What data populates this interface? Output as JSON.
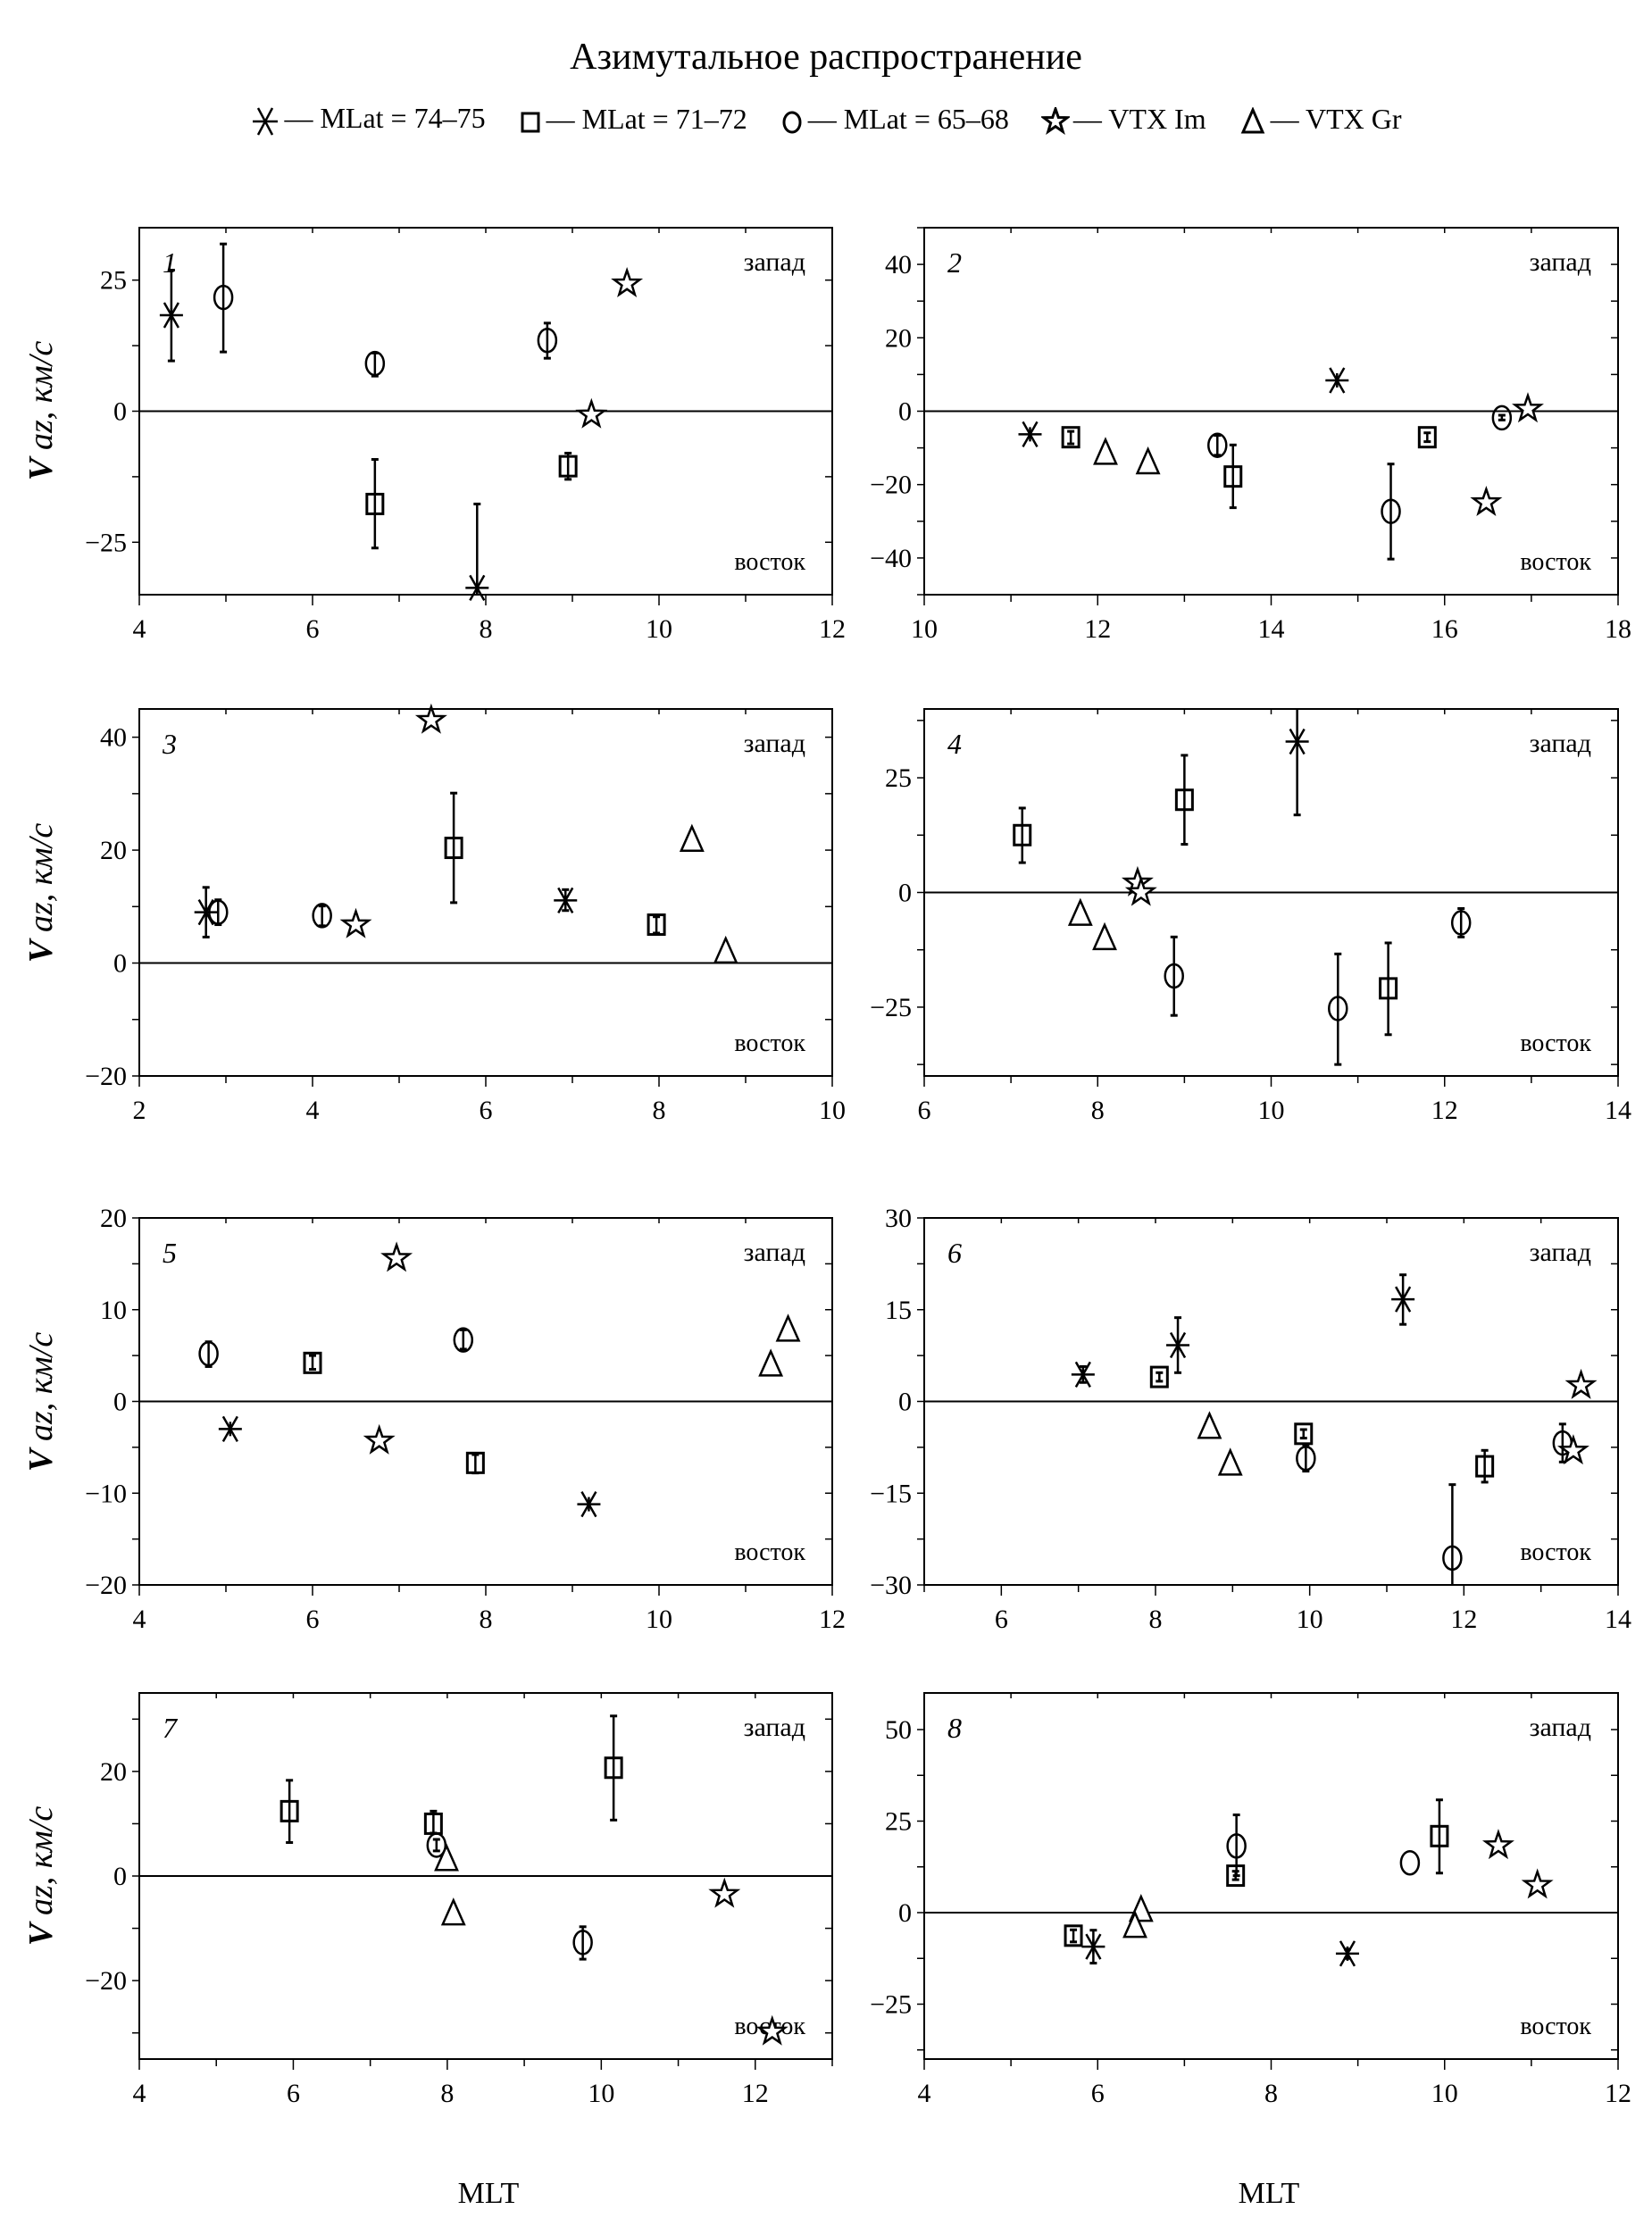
{
  "title": "Азимутальное распространение",
  "legend": [
    {
      "marker": "asterisk",
      "label": "— MLat = 74–75"
    },
    {
      "marker": "square",
      "label": "— MLat = 71–72"
    },
    {
      "marker": "circle",
      "label": "— MLat = 65–68"
    },
    {
      "marker": "star",
      "label": "— VTX Im"
    },
    {
      "marker": "triangle",
      "label": "— VTX Gr"
    }
  ],
  "xlabel": "MLT",
  "ylabel": "V az, км/с",
  "annotations": {
    "top": "запад",
    "bottom": "восток"
  },
  "chart_data": [
    {
      "type": "scatter",
      "panel": "1",
      "xlim": [
        4,
        12
      ],
      "ylim": [
        -35,
        35
      ],
      "xticks": [
        4,
        6,
        8,
        10,
        12
      ],
      "yticks": [
        -25,
        0,
        25
      ],
      "points": [
        {
          "series": "asterisk",
          "x": 4.37,
          "y": 18.3,
          "err": [
            9.6,
            26.9
          ]
        },
        {
          "series": "asterisk",
          "x": 7.9,
          "y": -33.7,
          "err": [
            -35,
            -17.7
          ]
        },
        {
          "series": "circle",
          "x": 4.97,
          "y": 21.7,
          "err": [
            11.3,
            31.9
          ]
        },
        {
          "series": "circle",
          "x": 6.72,
          "y": 9.1,
          "err": [
            6.7,
            11.1
          ]
        },
        {
          "series": "circle",
          "x": 8.71,
          "y": 13.5,
          "err": [
            10.1,
            16.8
          ]
        },
        {
          "series": "square",
          "x": 6.72,
          "y": -17.7,
          "err": [
            -26.1,
            -9.2
          ]
        },
        {
          "series": "square",
          "x": 8.95,
          "y": -10.5,
          "err": [
            -13.0,
            -8.0
          ]
        },
        {
          "series": "star",
          "x": 9.63,
          "y": 24.3
        },
        {
          "series": "star",
          "x": 9.22,
          "y": -0.7
        }
      ]
    },
    {
      "type": "scatter",
      "panel": "2",
      "xlim": [
        10,
        18
      ],
      "ylim": [
        -50,
        50
      ],
      "xticks": [
        10,
        12,
        14,
        16,
        18
      ],
      "yticks": [
        -40,
        -20,
        0,
        20,
        40
      ],
      "points": [
        {
          "series": "asterisk",
          "x": 11.22,
          "y": -6.3
        },
        {
          "series": "asterisk",
          "x": 14.76,
          "y": 8.4
        },
        {
          "series": "square",
          "x": 11.69,
          "y": -7.1,
          "err": [
            -8.9,
            -5.5
          ]
        },
        {
          "series": "square",
          "x": 13.56,
          "y": -17.8,
          "err": [
            -26.3,
            -9.2
          ]
        },
        {
          "series": "square",
          "x": 15.8,
          "y": -7.1,
          "err": [
            -8.3,
            -5.9
          ]
        },
        {
          "series": "circle",
          "x": 13.38,
          "y": -9.3,
          "err": [
            -12.0,
            -6.6
          ]
        },
        {
          "series": "circle",
          "x": 15.38,
          "y": -27.3,
          "err": [
            -40.3,
            -14.4
          ]
        },
        {
          "series": "circle",
          "x": 16.66,
          "y": -1.8,
          "err": [
            -2.4,
            -1.1
          ]
        },
        {
          "series": "triangle",
          "x": 12.09,
          "y": -11.4
        },
        {
          "series": "triangle",
          "x": 12.58,
          "y": -14.0
        },
        {
          "series": "star",
          "x": 16.48,
          "y": -24.9
        },
        {
          "series": "star",
          "x": 16.96,
          "y": 0.6
        }
      ]
    },
    {
      "type": "scatter",
      "panel": "3",
      "xlim": [
        2,
        10
      ],
      "ylim": [
        -20,
        45
      ],
      "xticks": [
        2,
        4,
        6,
        8,
        10
      ],
      "yticks": [
        -20,
        0,
        20,
        40
      ],
      "points": [
        {
          "series": "asterisk",
          "x": 2.77,
          "y": 9.0,
          "err": [
            4.6,
            13.4
          ]
        },
        {
          "series": "asterisk",
          "x": 6.92,
          "y": 11.1,
          "err": [
            9.3,
            13.0
          ]
        },
        {
          "series": "circle",
          "x": 2.91,
          "y": 9.0,
          "err": [
            6.8,
            11.2
          ]
        },
        {
          "series": "circle",
          "x": 4.11,
          "y": 8.4,
          "err": [
            6.6,
            10.1
          ]
        },
        {
          "series": "square",
          "x": 5.63,
          "y": 20.4,
          "err": [
            10.7,
            30.1
          ]
        },
        {
          "series": "square",
          "x": 7.97,
          "y": 6.8,
          "err": [
            5.3,
            8.2
          ]
        },
        {
          "series": "star",
          "x": 5.37,
          "y": 43.0
        },
        {
          "series": "star",
          "x": 4.5,
          "y": 6.8
        },
        {
          "series": "triangle",
          "x": 8.38,
          "y": 21.8
        },
        {
          "series": "triangle",
          "x": 8.77,
          "y": 2.0
        }
      ]
    },
    {
      "type": "scatter",
      "panel": "4",
      "xlim": [
        6,
        14
      ],
      "ylim": [
        -40,
        40
      ],
      "xticks": [
        6,
        8,
        10,
        12,
        14
      ],
      "yticks": [
        -25,
        0,
        25
      ],
      "points": [
        {
          "series": "square",
          "x": 7.13,
          "y": 12.5,
          "err": [
            6.5,
            18.4
          ]
        },
        {
          "series": "square",
          "x": 9.0,
          "y": 20.2,
          "err": [
            10.5,
            29.9
          ]
        },
        {
          "series": "square",
          "x": 11.35,
          "y": -20.9,
          "err": [
            -31.0,
            -11.0
          ]
        },
        {
          "series": "triangle",
          "x": 7.8,
          "y": -4.7
        },
        {
          "series": "triangle",
          "x": 8.08,
          "y": -10.0
        },
        {
          "series": "star",
          "x": 8.46,
          "y": 2.1
        },
        {
          "series": "star",
          "x": 8.5,
          "y": 0.0
        },
        {
          "series": "circle",
          "x": 8.88,
          "y": -18.2,
          "err": [
            -26.8,
            -9.7
          ]
        },
        {
          "series": "circle",
          "x": 10.77,
          "y": -25.3,
          "err": [
            -37.5,
            -13.4
          ]
        },
        {
          "series": "circle",
          "x": 12.19,
          "y": -6.6,
          "err": [
            -9.7,
            -3.5
          ]
        },
        {
          "series": "asterisk",
          "x": 10.3,
          "y": 32.9,
          "err": [
            16.9,
            40
          ]
        }
      ]
    },
    {
      "type": "scatter",
      "panel": "5",
      "xlim": [
        4,
        12
      ],
      "ylim": [
        -20,
        20
      ],
      "xticks": [
        4,
        6,
        8,
        10,
        12
      ],
      "yticks": [
        -20,
        -10,
        0,
        10,
        20
      ],
      "points": [
        {
          "series": "circle",
          "x": 4.8,
          "y": 5.2,
          "err": [
            3.8,
            6.5
          ]
        },
        {
          "series": "circle",
          "x": 7.74,
          "y": 6.7,
          "err": [
            5.7,
            7.8
          ]
        },
        {
          "series": "square",
          "x": 6.0,
          "y": 4.2,
          "err": [
            3.5,
            5.0
          ]
        },
        {
          "series": "square",
          "x": 7.88,
          "y": -6.7,
          "err": [
            -7.8,
            -5.8
          ]
        },
        {
          "series": "star",
          "x": 6.97,
          "y": 15.6
        },
        {
          "series": "star",
          "x": 6.77,
          "y": -4.3
        },
        {
          "series": "triangle",
          "x": 11.49,
          "y": 7.8
        },
        {
          "series": "triangle",
          "x": 11.29,
          "y": 4.0
        },
        {
          "series": "asterisk",
          "x": 5.05,
          "y": -3.0
        },
        {
          "series": "asterisk",
          "x": 9.19,
          "y": -11.2
        }
      ]
    },
    {
      "type": "scatter",
      "panel": "6",
      "xlim": [
        5,
        14
      ],
      "ylim": [
        -30,
        30
      ],
      "xticks": [
        6,
        8,
        10,
        12,
        14
      ],
      "yticks": [
        -30,
        -15,
        0,
        15,
        30
      ],
      "points": [
        {
          "series": "asterisk",
          "x": 7.06,
          "y": 4.4,
          "err": [
            3.1,
            5.7
          ]
        },
        {
          "series": "asterisk",
          "x": 8.29,
          "y": 9.2,
          "err": [
            4.7,
            13.7
          ]
        },
        {
          "series": "asterisk",
          "x": 11.21,
          "y": 16.7,
          "err": [
            12.6,
            20.7
          ]
        },
        {
          "series": "square",
          "x": 8.05,
          "y": 4.0,
          "err": [
            3.3,
            4.7
          ]
        },
        {
          "series": "square",
          "x": 9.92,
          "y": -5.3,
          "err": [
            -6.0,
            -4.6
          ]
        },
        {
          "series": "square",
          "x": 12.27,
          "y": -10.6,
          "err": [
            -13.2,
            -8.0
          ]
        },
        {
          "series": "triangle",
          "x": 8.7,
          "y": -4.2
        },
        {
          "series": "triangle",
          "x": 8.97,
          "y": -10.2
        },
        {
          "series": "circle",
          "x": 9.95,
          "y": -9.3,
          "err": [
            -11.4,
            -7.1
          ]
        },
        {
          "series": "circle",
          "x": 11.85,
          "y": -25.6,
          "err": [
            -30,
            -13.6
          ]
        },
        {
          "series": "circle",
          "x": 13.28,
          "y": -6.8,
          "err": [
            -9.9,
            -3.7
          ]
        },
        {
          "series": "star",
          "x": 13.52,
          "y": 2.6
        },
        {
          "series": "star",
          "x": 13.42,
          "y": -8.1
        }
      ]
    },
    {
      "type": "scatter",
      "panel": "7",
      "xlim": [
        4,
        13
      ],
      "ylim": [
        -35,
        35
      ],
      "xticks": [
        4,
        6,
        8,
        10,
        12
      ],
      "yticks": [
        -20,
        0,
        20
      ],
      "points": [
        {
          "series": "square",
          "x": 5.95,
          "y": 12.4,
          "err": [
            6.4,
            18.3
          ]
        },
        {
          "series": "square",
          "x": 7.82,
          "y": 10.0,
          "err": [
            8.2,
            12.4
          ]
        },
        {
          "series": "square",
          "x": 10.16,
          "y": 20.7,
          "err": [
            10.7,
            30.6
          ]
        },
        {
          "series": "circle",
          "x": 7.86,
          "y": 5.9,
          "err": [
            4.8,
            7.0
          ]
        },
        {
          "series": "circle",
          "x": 9.76,
          "y": -12.7,
          "err": [
            -15.9,
            -9.7
          ]
        },
        {
          "series": "triangle",
          "x": 7.99,
          "y": 3.2
        },
        {
          "series": "triangle",
          "x": 8.08,
          "y": -7.2
        },
        {
          "series": "star",
          "x": 11.6,
          "y": -3.5
        },
        {
          "series": "star",
          "x": 12.22,
          "y": -29.8
        }
      ]
    },
    {
      "type": "scatter",
      "panel": "8",
      "xlim": [
        4,
        12
      ],
      "ylim": [
        -40,
        60
      ],
      "xticks": [
        4,
        6,
        8,
        10,
        12
      ],
      "yticks": [
        -25,
        0,
        25,
        50
      ],
      "points": [
        {
          "series": "square",
          "x": 5.72,
          "y": -6.3,
          "err": [
            -8.0,
            -4.7
          ]
        },
        {
          "series": "square",
          "x": 7.59,
          "y": 10.1,
          "err": [
            9.0,
            11.3
          ]
        },
        {
          "series": "square",
          "x": 9.94,
          "y": 20.9,
          "err": [
            10.8,
            30.8
          ]
        },
        {
          "series": "asterisk",
          "x": 5.95,
          "y": -9.3,
          "err": [
            -13.8,
            -4.8
          ]
        },
        {
          "series": "asterisk",
          "x": 8.88,
          "y": -11.2,
          "err": [
            -12.5,
            -10.0
          ]
        },
        {
          "series": "triangle",
          "x": 6.5,
          "y": 0.7
        },
        {
          "series": "triangle",
          "x": 6.43,
          "y": -3.7
        },
        {
          "series": "circle",
          "x": 7.6,
          "y": 18.2,
          "err": [
            10.1,
            26.7
          ]
        },
        {
          "series": "circle",
          "x": 9.6,
          "y": 13.6
        },
        {
          "series": "star",
          "x": 10.62,
          "y": 18.3
        },
        {
          "series": "star",
          "x": 11.07,
          "y": 7.5
        }
      ]
    }
  ]
}
